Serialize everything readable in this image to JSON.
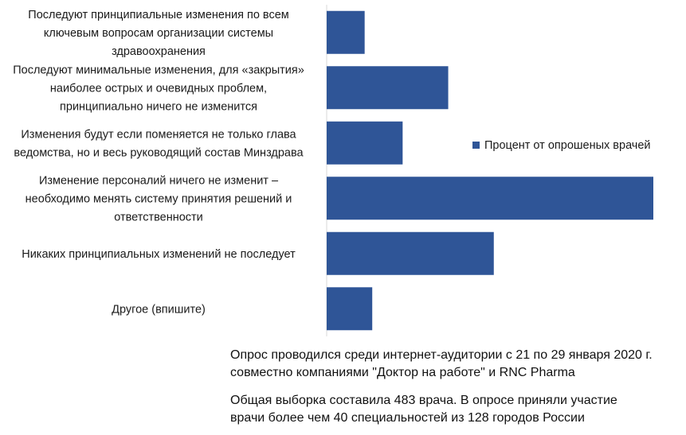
{
  "chart_data": {
    "type": "bar",
    "orientation": "horizontal",
    "categories": [
      [
        "Последуют принципиальные изменения по всем",
        "ключевым вопросам организации системы",
        "здравоохранения"
      ],
      [
        "Последуют минимальные изменения, для «закрытия»",
        "наиболее острых и очевидных проблем,",
        "принципиально ничего не изменится"
      ],
      [
        "Изменения будут если поменяется не только глава",
        "ведомства, но и весь руководящий состав Минздрава"
      ],
      [
        "Изменение персоналий ничего не изменит –",
        "необходимо менять систему принятия решений и",
        "ответственности"
      ],
      [
        "Никаких принципиальных изменений не последует"
      ],
      [
        "Другое (впишите)"
      ]
    ],
    "series": [
      {
        "name": "Процент от опрошеных врачей",
        "values": [
          5,
          16,
          10,
          43,
          22,
          6
        ],
        "color": "#2f5597"
      }
    ],
    "data_labels": [
      "5%",
      "16%",
      "10%",
      "43%",
      "22%",
      "6%"
    ],
    "xlim": [
      0,
      43
    ],
    "grid": false,
    "legend_position": "right"
  },
  "notes": [
    [
      "Опрос проводился среди интернет-аудитории  с 21 по 29 января 2020 г.",
      "совместно компаниями \"Доктор на работе\" и RNC Pharma"
    ],
    [
      "Общая выборка составила 483 врача. В опросе приняли участие",
      "врачи более чем 40 специальностей из 128 городов России"
    ]
  ]
}
